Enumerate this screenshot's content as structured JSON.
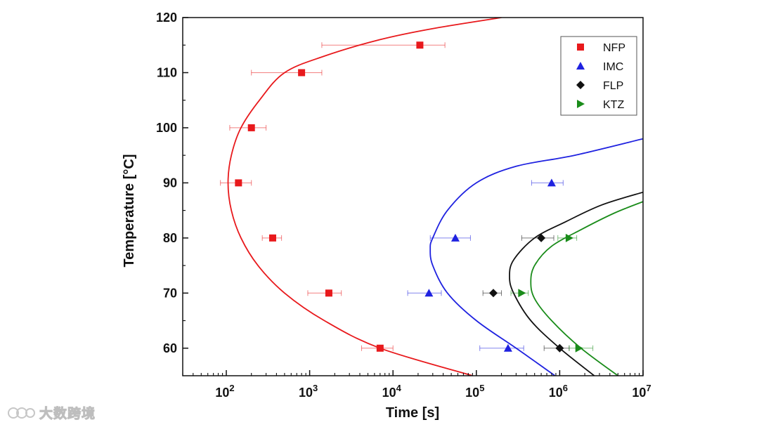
{
  "chart_data": {
    "type": "scatter",
    "xlabel": "Time [s]",
    "ylabel": "Temperature [°C]",
    "xscale": "log",
    "xlim": [
      30,
      10000000
    ],
    "ylim": [
      55,
      120
    ],
    "x_ticks": [
      {
        "value": 100,
        "mantissa": "10",
        "exp": "2"
      },
      {
        "value": 1000,
        "mantissa": "10",
        "exp": "3"
      },
      {
        "value": 10000,
        "mantissa": "10",
        "exp": "4"
      },
      {
        "value": 100000,
        "mantissa": "10",
        "exp": "5"
      },
      {
        "value": 1000000,
        "mantissa": "10",
        "exp": "6"
      },
      {
        "value": 10000000,
        "mantissa": "10",
        "exp": "7"
      }
    ],
    "y_ticks": [
      "60",
      "70",
      "80",
      "90",
      "100",
      "110",
      "120"
    ],
    "legend_position": "top-right",
    "series": [
      {
        "name": "NFP",
        "color": "#e8191c",
        "marker": "square",
        "points": [
          {
            "x": 7000,
            "y": 60,
            "xerr": [
              4200,
              10000
            ]
          },
          {
            "x": 1700,
            "y": 70,
            "xerr": [
              950,
              2400
            ]
          },
          {
            "x": 360,
            "y": 80,
            "xerr": [
              270,
              460
            ]
          },
          {
            "x": 140,
            "y": 90,
            "xerr": [
              85,
              200
            ]
          },
          {
            "x": 200,
            "y": 100,
            "xerr": [
              110,
              300
            ]
          },
          {
            "x": 800,
            "y": 110,
            "xerr": [
              200,
              1400
            ]
          },
          {
            "x": 21000,
            "y": 115,
            "xerr": [
              1400,
              42000
            ]
          }
        ],
        "fit": [
          [
            90000,
            55
          ],
          [
            7000,
            60
          ],
          [
            1500,
            65
          ],
          [
            500,
            70
          ],
          [
            240,
            75
          ],
          [
            150,
            80
          ],
          [
            115,
            85
          ],
          [
            105,
            90
          ],
          [
            115,
            95
          ],
          [
            150,
            100
          ],
          [
            250,
            105
          ],
          [
            500,
            110
          ],
          [
            1500,
            113
          ],
          [
            7000,
            116
          ],
          [
            30000,
            118
          ],
          [
            200000,
            120
          ]
        ]
      },
      {
        "name": "IMC",
        "color": "#1f22e0",
        "marker": "triangle-up",
        "points": [
          {
            "x": 240000,
            "y": 60,
            "xerr": [
              110000,
              370000
            ]
          },
          {
            "x": 27000,
            "y": 70,
            "xerr": [
              15000,
              38000
            ]
          },
          {
            "x": 56000,
            "y": 80,
            "xerr": [
              28000,
              85000
            ]
          },
          {
            "x": 800000,
            "y": 90,
            "xerr": [
              460000,
              1100000
            ]
          }
        ],
        "fit": [
          [
            880000,
            55
          ],
          [
            300000,
            60
          ],
          [
            100000,
            65
          ],
          [
            45000,
            70
          ],
          [
            30000,
            75
          ],
          [
            28000,
            78
          ],
          [
            30000,
            80
          ],
          [
            45000,
            85
          ],
          [
            100000,
            90
          ],
          [
            300000,
            93
          ],
          [
            1500000,
            95
          ],
          [
            10000000,
            98
          ]
        ]
      },
      {
        "name": "FLP",
        "color": "#111111",
        "marker": "diamond",
        "points": [
          {
            "x": 1000000,
            "y": 60,
            "xerr": [
              650000,
              1300000
            ]
          },
          {
            "x": 160000,
            "y": 70,
            "xerr": [
              120000,
              200000
            ]
          },
          {
            "x": 600000,
            "y": 80,
            "xerr": [
              350000,
              850000
            ]
          }
        ],
        "fit": [
          [
            2600000,
            55
          ],
          [
            1000000,
            60
          ],
          [
            450000,
            65
          ],
          [
            280000,
            70
          ],
          [
            250000,
            73
          ],
          [
            280000,
            76
          ],
          [
            500000,
            80
          ],
          [
            1200000,
            83
          ],
          [
            3200000,
            86
          ],
          [
            10000000,
            88.3
          ]
        ]
      },
      {
        "name": "KTZ",
        "color": "#1a8c1a",
        "marker": "triangle-right",
        "points": [
          {
            "x": 1700000,
            "y": 60,
            "xerr": [
              1300000,
              2500000
            ]
          },
          {
            "x": 350000,
            "y": 70,
            "xerr": [
              260000,
              420000
            ]
          },
          {
            "x": 1300000,
            "y": 80,
            "xerr": [
              950000,
              1600000
            ]
          }
        ],
        "fit": [
          [
            5000000,
            55
          ],
          [
            1800000,
            60
          ],
          [
            800000,
            65
          ],
          [
            500000,
            69
          ],
          [
            450000,
            72
          ],
          [
            500000,
            75
          ],
          [
            800000,
            78.5
          ],
          [
            1800000,
            81.5
          ],
          [
            4500000,
            84.5
          ],
          [
            10000000,
            86.6
          ]
        ]
      }
    ]
  },
  "watermark": {
    "text": "大数跨境"
  }
}
